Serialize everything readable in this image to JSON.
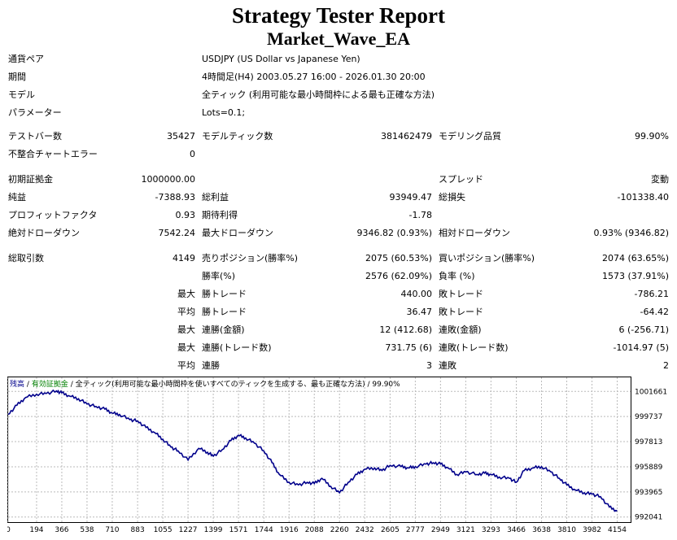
{
  "report": {
    "title": "Strategy Tester Report",
    "ea_name": "Market_Wave_EA"
  },
  "info": {
    "pair_label": "通貨ペア",
    "pair_value": "USDJPY (US Dollar vs Japanese Yen)",
    "period_label": "期間",
    "period_value": "4時間足(H4) 2003.05.27 16:00 - 2026.01.30 20:00",
    "model_label": "モデル",
    "model_value": "全ティック (利用可能な最小時間枠による最も正確な方法)",
    "params_label": "パラメーター",
    "params_value": "Lots=0.1;"
  },
  "stats": {
    "bars_label": "テストバー数",
    "bars_value": "35427",
    "ticks_label": "モデルティック数",
    "ticks_value": "381462479",
    "quality_label": "モデリング品質",
    "quality_value": "99.90%",
    "mismatch_label": "不整合チャートエラー",
    "mismatch_value": "0",
    "deposit_label": "初期証拠金",
    "deposit_value": "1000000.00",
    "spread_label": "スプレッド",
    "spread_value": "変動",
    "net_label": "純益",
    "net_value": "-7388.93",
    "gross_profit_label": "総利益",
    "gross_profit_value": "93949.47",
    "gross_loss_label": "総損失",
    "gross_loss_value": "-101338.40",
    "pf_label": "プロフィットファクタ",
    "pf_value": "0.93",
    "payoff_label": "期待利得",
    "payoff_value": "-1.78",
    "abs_dd_label": "絶対ドローダウン",
    "abs_dd_value": "7542.24",
    "max_dd_label": "最大ドローダウン",
    "max_dd_value": "9346.82 (0.93%)",
    "rel_dd_label": "相対ドローダウン",
    "rel_dd_value": "0.93% (9346.82)",
    "total_label": "総取引数",
    "total_value": "4149",
    "short_label": "売りポジション(勝率%)",
    "short_value": "2075 (60.53%)",
    "long_label": "買いポジション(勝率%)",
    "long_value": "2074 (63.65%)",
    "win_rate_label": "勝率(%)",
    "win_rate_value": "2576 (62.09%)",
    "loss_rate_label": "負率 (%)",
    "loss_rate_value": "1573 (37.91%)",
    "max_label": "最大",
    "avg_label": "平均",
    "max_win_label": "勝トレード",
    "max_win_value": "440.00",
    "max_loss_label": "敗トレード",
    "max_loss_value": "-786.21",
    "avg_win_label": "勝トレード",
    "avg_win_value": "36.47",
    "avg_loss_label": "敗トレード",
    "avg_loss_value": "-64.42",
    "cons_win_money_label": "連勝(金額)",
    "cons_win_money_value": "12 (412.68)",
    "cons_loss_money_label": "連敗(金額)",
    "cons_loss_money_value": "6 (-256.71)",
    "cons_win_count_label": "連勝(トレード数)",
    "cons_win_count_value": "731.75 (6)",
    "cons_loss_count_label": "連敗(トレード数)",
    "cons_loss_count_value": "-1014.97 (5)",
    "avg_cons_win_label": "連勝",
    "avg_cons_win_value": "3",
    "avg_cons_loss_label": "連敗",
    "avg_cons_loss_value": "2"
  },
  "chart_data": {
    "type": "line",
    "header_balance": "残高",
    "header_equity": "有効証拠金",
    "header_model": "全ティック(利用可能な最小時間枠を使いすべてのティックを生成する、最も正確な方法)",
    "header_quality": "99.90%",
    "header_sep": "/",
    "colors": {
      "line": "#00008b",
      "equity": "#008000",
      "grid": "#bbbbbb"
    },
    "x_ticks": [
      "0",
      "194",
      "366",
      "538",
      "710",
      "883",
      "1055",
      "1227",
      "1399",
      "1571",
      "1744",
      "1916",
      "2088",
      "2260",
      "2432",
      "2605",
      "2777",
      "2949",
      "3121",
      "3293",
      "3466",
      "3638",
      "3810",
      "3982",
      "4154"
    ],
    "y_ticks": [
      "1001661",
      "999737",
      "997813",
      "995889",
      "993965",
      "992041"
    ],
    "xlim": [
      0,
      4240
    ],
    "ylim": [
      991650,
      1002800
    ],
    "series": [
      {
        "x": [
          0,
          60,
          120,
          194,
          260,
          330,
          366,
          420,
          480,
          538,
          600,
          660,
          710,
          760,
          830,
          883,
          940,
          1000,
          1055,
          1110,
          1160,
          1227,
          1300,
          1360,
          1399,
          1460,
          1520,
          1571,
          1620,
          1680,
          1744,
          1800,
          1850,
          1916,
          1980,
          2040,
          2088,
          2140,
          2200,
          2260,
          2320,
          2380,
          2432,
          2500,
          2550,
          2605,
          2680,
          2730,
          2777,
          2850,
          2900,
          2949,
          3000,
          3060,
          3121,
          3200,
          3250,
          3293,
          3350,
          3420,
          3466,
          3520,
          3580,
          3638,
          3700,
          3760,
          3810,
          3870,
          3930,
          3982,
          4040,
          4100,
          4154
        ],
        "y": [
          999900,
          1000600,
          1001200,
          1001450,
          1001500,
          1001700,
          1001550,
          1001300,
          1001100,
          1000700,
          1000500,
          1000300,
          1000000,
          999900,
          999500,
          999400,
          998900,
          998500,
          998000,
          997400,
          997100,
          996400,
          997300,
          997000,
          996700,
          997200,
          997900,
          998300,
          998100,
          997700,
          997100,
          996200,
          995300,
          994700,
          994500,
          994700,
          994600,
          995000,
          994400,
          993900,
          994700,
          995300,
          995700,
          995800,
          995600,
          996000,
          995900,
          995800,
          995900,
          996100,
          996200,
          996100,
          995800,
          995300,
          995500,
          995300,
          995400,
          995300,
          995100,
          995000,
          994700,
          995600,
          995800,
          995900,
          995500,
          995000,
          994500,
          994100,
          993900,
          993800,
          993600,
          992800,
          992500
        ]
      }
    ]
  }
}
